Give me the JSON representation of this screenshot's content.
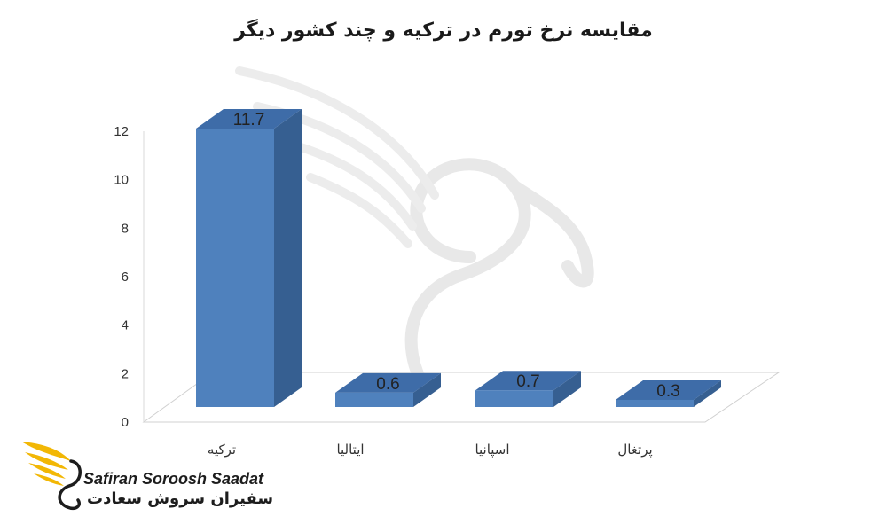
{
  "chart_data": {
    "type": "bar",
    "title": "مقایسه نرخ تورم در ترکیه و چند کشور دیگر",
    "categories": [
      "ترکیه",
      "ایتالیا",
      "اسپانیا",
      "پرتغال"
    ],
    "values": [
      11.7,
      0.6,
      0.7,
      0.3
    ],
    "data_labels": [
      "11.7",
      "0.6",
      "0.7",
      "0.3"
    ],
    "yticks": [
      "0",
      "2",
      "4",
      "6",
      "8",
      "10",
      "12"
    ],
    "ylim": [
      0,
      12
    ],
    "grid": false,
    "style": "3d-column",
    "bar_color": "#4f81bd"
  },
  "logo": {
    "latin_text": "Safiran Soroosh Saadat",
    "persian_text": "سفیران سروش سعادت"
  }
}
